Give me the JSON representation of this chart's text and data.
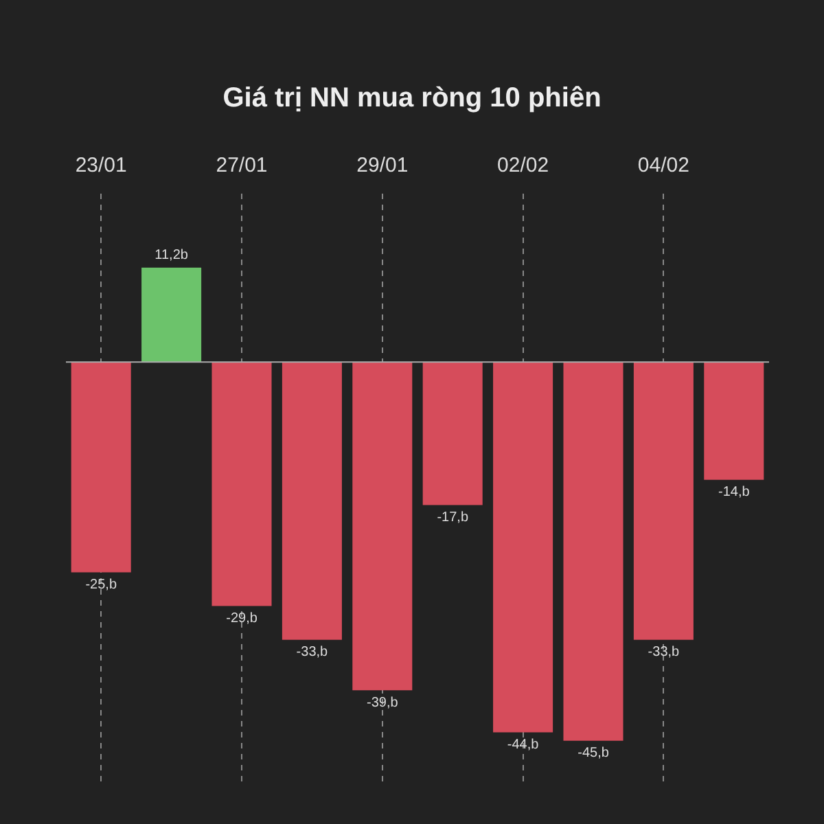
{
  "chart_data": {
    "type": "bar",
    "title": "Giá trị NN mua ròng 10 phiên",
    "categories": [
      "23/01",
      null,
      "27/01",
      null,
      "29/01",
      null,
      "02/02",
      null,
      "04/02",
      null
    ],
    "values": [
      -25,
      11.2,
      -29,
      -33,
      -39,
      -17,
      -44,
      -45,
      -33,
      -14
    ],
    "colors": [
      "#d64c5b",
      "#6cc36b",
      "#d64c5b",
      "#d64c5b",
      "#d64c5b",
      "#d64c5b",
      "#d64c5b",
      "#d64c5b",
      "#d64c5b",
      "#d64c5b"
    ],
    "value_labels": [
      "-25,b",
      "11,2b",
      "-29,b",
      "-33,b",
      "-39,b",
      "-17,b",
      "-44,b",
      "-45,b",
      "-33,b",
      "-14,b"
    ],
    "grid": "x",
    "legend": false
  }
}
